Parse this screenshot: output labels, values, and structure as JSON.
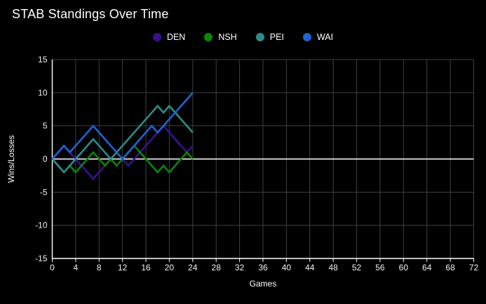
{
  "title": "STAB Standings Over Time",
  "colors": {
    "background": "#000000",
    "grid": "#3f3f3f",
    "zero_line": "#ffffff",
    "axis_line": "#ffffff",
    "text": "#ffffff"
  },
  "legend": [
    {
      "label": "DEN",
      "color": "#38128e"
    },
    {
      "label": "NSH",
      "color": "#0a850a"
    },
    {
      "label": "PEI",
      "color": "#2d8b8b"
    },
    {
      "label": "WAI",
      "color": "#1e64d2"
    }
  ],
  "axes": {
    "x_label": "Games",
    "y_label": "Wins/Losses",
    "x_ticks": [
      0,
      4,
      8,
      12,
      16,
      20,
      24,
      28,
      32,
      36,
      40,
      44,
      48,
      52,
      56,
      60,
      64,
      68,
      72
    ],
    "y_ticks": [
      -15,
      -10,
      -5,
      0,
      5,
      10,
      15
    ]
  },
  "chart_data": {
    "type": "line",
    "title": "STAB Standings Over Time",
    "xlabel": "Games",
    "ylabel": "Wins/Losses",
    "xlim": [
      0,
      72
    ],
    "ylim": [
      -15,
      15
    ],
    "grid": true,
    "legend_position": "top",
    "x": [
      0,
      1,
      2,
      3,
      4,
      5,
      6,
      7,
      8,
      9,
      10,
      11,
      12,
      13,
      14,
      15,
      16,
      17,
      18,
      19,
      20,
      21,
      22,
      23,
      24
    ],
    "series": [
      {
        "name": "DEN",
        "color": "#38128e",
        "values": [
          0,
          1,
          2,
          1,
          0,
          -1,
          -2,
          -3,
          -2,
          -1,
          0,
          1,
          0,
          -1,
          0,
          1,
          2,
          3,
          4,
          5,
          4,
          3,
          2,
          1,
          2
        ]
      },
      {
        "name": "NSH",
        "color": "#0a850a",
        "values": [
          0,
          -1,
          -2,
          -1,
          -2,
          -1,
          0,
          1,
          0,
          -1,
          0,
          -1,
          0,
          1,
          2,
          1,
          0,
          -1,
          -2,
          -1,
          -2,
          -1,
          0,
          1,
          0
        ]
      },
      {
        "name": "PEI",
        "color": "#2d8b8b",
        "values": [
          0,
          -1,
          -2,
          -1,
          0,
          1,
          2,
          3,
          2,
          1,
          0,
          1,
          2,
          3,
          4,
          5,
          6,
          7,
          8,
          7,
          8,
          7,
          6,
          5,
          4
        ]
      },
      {
        "name": "WAI",
        "color": "#1e64d2",
        "values": [
          0,
          1,
          2,
          1,
          2,
          3,
          4,
          5,
          4,
          3,
          2,
          1,
          0,
          1,
          2,
          3,
          4,
          5,
          4,
          5,
          6,
          7,
          8,
          9,
          10
        ]
      }
    ]
  }
}
